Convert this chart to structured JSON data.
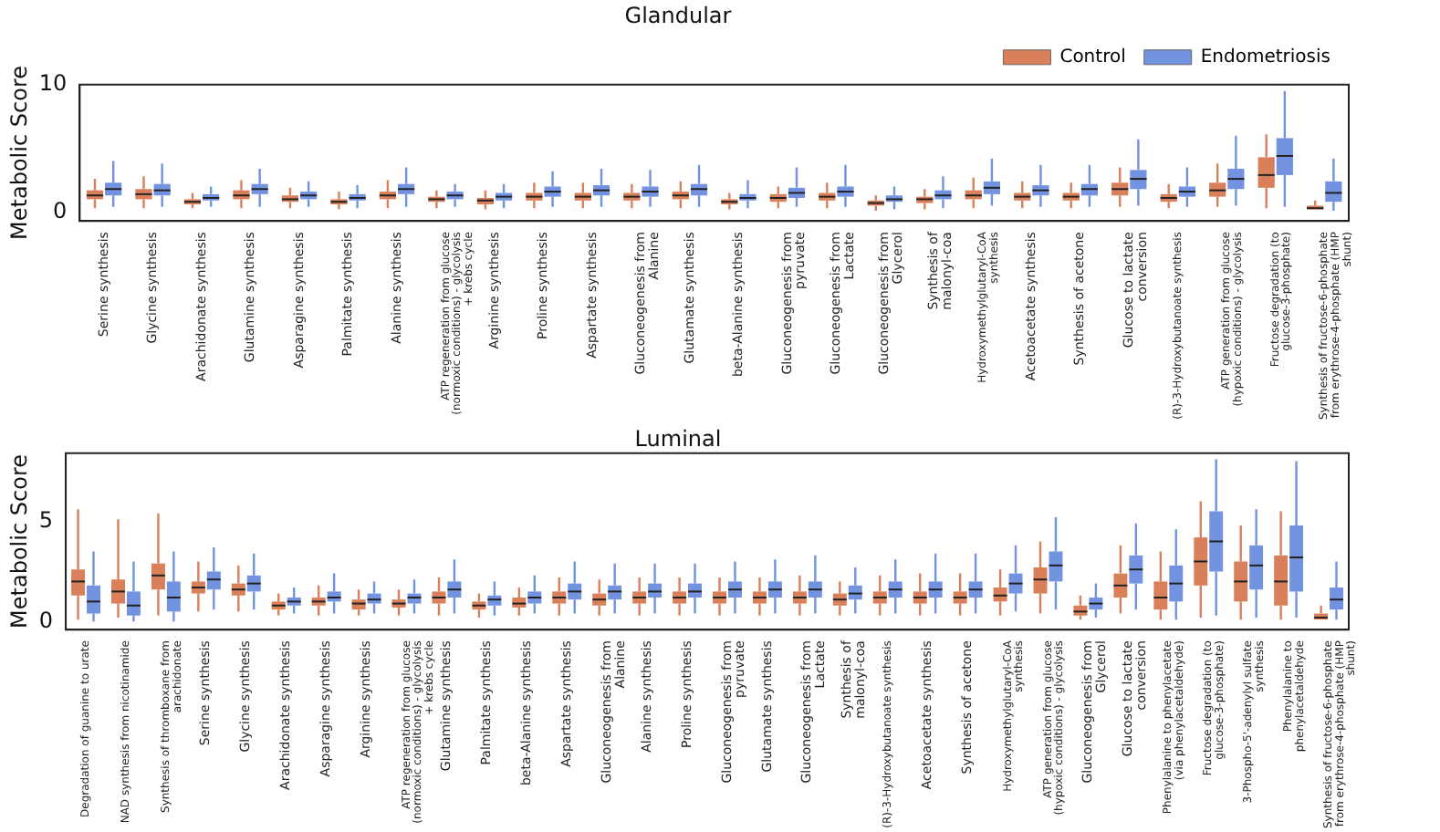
{
  "chart_data": [
    {
      "type": "box",
      "title": "Glandular",
      "ylabel": "Metabolic Score",
      "ylim": [
        -0.7,
        10
      ],
      "yticks": [
        0,
        10
      ],
      "grid": false,
      "legend": "top right",
      "categories": [
        "Serine synthesis",
        "Glycine synthesis",
        "Arachidonate synthesis",
        "Glutamine synthesis",
        "Asparagine synthesis",
        "Palmitate synthesis",
        "Alanine synthesis",
        "ATP regeneration from glucose (normoxic conditions) - glycolysis + krebs cycle",
        "Arginine synthesis",
        "Proline synthesis",
        "Aspartate synthesis",
        "Gluconeogenesis from Alanine",
        "Glutamate synthesis",
        "beta-Alanine synthesis",
        "Gluconeogenesis from pyruvate",
        "Gluconeogenesis from Lactate",
        "Gluconeogenesis from Glycerol",
        "Synthesis of malonyl-coa",
        "Hydroxymethylglutaryl-CoA synthesis",
        "Acetoacetate synthesis",
        "Synthesis of acetone",
        "Glucose to lactate conversion",
        "(R)-3-Hydroxybutanoate synthesis",
        "ATP generation from glucose (hypoxic conditions) - glycolysis",
        "Fructose degradation (to glucose-3-phosphate)",
        "Synthesis of fructose-6-phosphate from erythrose-4-phosphate (HMP shunt)"
      ],
      "series": [
        {
          "name": "Control",
          "color": "#d9805a",
          "boxes": [
            {
              "low": 0.3,
              "q1": 1.0,
              "median": 1.3,
              "q3": 1.7,
              "high": 2.6
            },
            {
              "low": 0.3,
              "q1": 1.0,
              "median": 1.4,
              "q3": 1.8,
              "high": 2.8
            },
            {
              "low": 0.3,
              "q1": 0.6,
              "median": 0.8,
              "q3": 1.0,
              "high": 1.5
            },
            {
              "low": 0.3,
              "q1": 1.0,
              "median": 1.3,
              "q3": 1.7,
              "high": 2.5
            },
            {
              "low": 0.3,
              "q1": 0.8,
              "median": 1.0,
              "q3": 1.3,
              "high": 1.9
            },
            {
              "low": 0.2,
              "q1": 0.6,
              "median": 0.8,
              "q3": 1.0,
              "high": 1.6
            },
            {
              "low": 0.3,
              "q1": 1.0,
              "median": 1.3,
              "q3": 1.6,
              "high": 2.5
            },
            {
              "low": 0.3,
              "q1": 0.8,
              "median": 1.0,
              "q3": 1.2,
              "high": 1.7
            },
            {
              "low": 0.2,
              "q1": 0.6,
              "median": 0.9,
              "q3": 1.1,
              "high": 1.7
            },
            {
              "low": 0.3,
              "q1": 0.9,
              "median": 1.2,
              "q3": 1.5,
              "high": 2.3
            },
            {
              "low": 0.3,
              "q1": 0.9,
              "median": 1.2,
              "q3": 1.5,
              "high": 2.3
            },
            {
              "low": 0.3,
              "q1": 0.9,
              "median": 1.2,
              "q3": 1.5,
              "high": 2.2
            },
            {
              "low": 0.3,
              "q1": 1.0,
              "median": 1.3,
              "q3": 1.6,
              "high": 2.4
            },
            {
              "low": 0.2,
              "q1": 0.6,
              "median": 0.8,
              "q3": 1.0,
              "high": 1.5
            },
            {
              "low": 0.3,
              "q1": 0.8,
              "median": 1.1,
              "q3": 1.4,
              "high": 2.0
            },
            {
              "low": 0.3,
              "q1": 0.9,
              "median": 1.2,
              "q3": 1.5,
              "high": 2.3
            },
            {
              "low": 0.1,
              "q1": 0.5,
              "median": 0.7,
              "q3": 0.9,
              "high": 1.3
            },
            {
              "low": 0.2,
              "q1": 0.7,
              "median": 1.0,
              "q3": 1.2,
              "high": 1.8
            },
            {
              "low": 0.3,
              "q1": 1.0,
              "median": 1.3,
              "q3": 1.7,
              "high": 2.7
            },
            {
              "low": 0.3,
              "q1": 0.9,
              "median": 1.2,
              "q3": 1.5,
              "high": 2.4
            },
            {
              "low": 0.3,
              "q1": 0.9,
              "median": 1.2,
              "q3": 1.5,
              "high": 2.3
            },
            {
              "low": 0.4,
              "q1": 1.3,
              "median": 1.8,
              "q3": 2.3,
              "high": 3.5
            },
            {
              "low": 0.3,
              "q1": 0.8,
              "median": 1.1,
              "q3": 1.4,
              "high": 2.2
            },
            {
              "low": 0.4,
              "q1": 1.2,
              "median": 1.7,
              "q3": 2.3,
              "high": 3.8
            },
            {
              "low": 0.3,
              "q1": 1.9,
              "median": 2.9,
              "q3": 4.3,
              "high": 6.1
            },
            {
              "low": 0.1,
              "q1": 0.2,
              "median": 0.3,
              "q3": 0.5,
              "high": 0.9
            }
          ]
        },
        {
          "name": "Endometriosis",
          "color": "#7393e0",
          "boxes": [
            {
              "low": 0.4,
              "q1": 1.3,
              "median": 1.8,
              "q3": 2.3,
              "high": 4.0
            },
            {
              "low": 0.4,
              "q1": 1.3,
              "median": 1.7,
              "q3": 2.2,
              "high": 3.8
            },
            {
              "low": 0.4,
              "q1": 0.9,
              "median": 1.1,
              "q3": 1.4,
              "high": 2.0
            },
            {
              "low": 0.4,
              "q1": 1.4,
              "median": 1.8,
              "q3": 2.2,
              "high": 3.4
            },
            {
              "low": 0.4,
              "q1": 1.0,
              "median": 1.3,
              "q3": 1.6,
              "high": 2.4
            },
            {
              "low": 0.3,
              "q1": 0.9,
              "median": 1.1,
              "q3": 1.4,
              "high": 2.1
            },
            {
              "low": 0.4,
              "q1": 1.4,
              "median": 1.8,
              "q3": 2.2,
              "high": 3.5
            },
            {
              "low": 0.4,
              "q1": 1.0,
              "median": 1.3,
              "q3": 1.6,
              "high": 2.2
            },
            {
              "low": 0.3,
              "q1": 0.9,
              "median": 1.2,
              "q3": 1.5,
              "high": 2.2
            },
            {
              "low": 0.4,
              "q1": 1.2,
              "median": 1.6,
              "q3": 2.0,
              "high": 3.2
            },
            {
              "low": 0.4,
              "q1": 1.3,
              "median": 1.7,
              "q3": 2.1,
              "high": 3.4
            },
            {
              "low": 0.4,
              "q1": 1.2,
              "median": 1.6,
              "q3": 2.0,
              "high": 3.3
            },
            {
              "low": 0.4,
              "q1": 1.3,
              "median": 1.8,
              "q3": 2.2,
              "high": 3.7
            },
            {
              "low": 0.3,
              "q1": 0.9,
              "median": 1.1,
              "q3": 1.4,
              "high": 2.5
            },
            {
              "low": 0.4,
              "q1": 1.1,
              "median": 1.5,
              "q3": 1.9,
              "high": 3.5
            },
            {
              "low": 0.4,
              "q1": 1.2,
              "median": 1.6,
              "q3": 2.0,
              "high": 3.7
            },
            {
              "low": 0.2,
              "q1": 0.8,
              "median": 1.0,
              "q3": 1.3,
              "high": 2.0
            },
            {
              "low": 0.3,
              "q1": 1.0,
              "median": 1.3,
              "q3": 1.7,
              "high": 2.8
            },
            {
              "low": 0.5,
              "q1": 1.4,
              "median": 1.9,
              "q3": 2.4,
              "high": 4.2
            },
            {
              "low": 0.4,
              "q1": 1.3,
              "median": 1.7,
              "q3": 2.1,
              "high": 3.7
            },
            {
              "low": 0.4,
              "q1": 1.3,
              "median": 1.8,
              "q3": 2.2,
              "high": 3.7
            },
            {
              "low": 0.5,
              "q1": 1.8,
              "median": 2.6,
              "q3": 3.3,
              "high": 5.7
            },
            {
              "low": 0.4,
              "q1": 1.2,
              "median": 1.6,
              "q3": 2.0,
              "high": 3.5
            },
            {
              "low": 0.5,
              "q1": 1.8,
              "median": 2.6,
              "q3": 3.4,
              "high": 6.0
            },
            {
              "low": 0.4,
              "q1": 2.9,
              "median": 4.4,
              "q3": 5.8,
              "high": 9.5
            },
            {
              "low": 0.1,
              "q1": 0.8,
              "median": 1.5,
              "q3": 2.4,
              "high": 4.2
            }
          ]
        }
      ]
    },
    {
      "type": "box",
      "title": "Luminal",
      "ylabel": "Metabolic Score",
      "ylim": [
        -0.4,
        8.4
      ],
      "yticks": [
        0,
        5
      ],
      "grid": false,
      "categories": [
        "Degradation of guanine to urate",
        "NAD synthesis from nicotinamide",
        "Synthesis of thromboxane from arachidonate",
        "Serine synthesis",
        "Glycine synthesis",
        "Arachidonate synthesis",
        "Asparagine synthesis",
        "Arginine synthesis",
        "ATP regeneration from glucose (normoxic conditions) - glycolysis + krebs cycle",
        "Glutamine synthesis",
        "Palmitate synthesis",
        "beta-Alanine synthesis",
        "Aspartate synthesis",
        "Gluconeogenesis from Alanine",
        "Alanine synthesis",
        "Proline synthesis",
        "Gluconeogenesis from pyruvate",
        "Glutamate synthesis",
        "Gluconeogenesis from Lactate",
        "Synthesis of malonyl-coa",
        "(R)-3-Hydroxybutanoate synthesis",
        "Acetoacetate synthesis",
        "Synthesis of acetone",
        "Hydroxymethylglutaryl-CoA synthesis",
        "ATP generation from glucose (hypoxic conditions) - glycolysis",
        "Gluconeogenesis from Glycerol",
        "Glucose to lactate conversion",
        "Phenylalanine to phenylacetate (via phenylacetaldehyde)",
        "Fructose degradation (to glucose-3-phosphate)",
        "3-Phospho-5'-adenylyl sulfate synthesis",
        "Phenylalanine to phenylacetaldehyde",
        "Synthesis of fructose-6-phosphate from erythrose-4-phosphate (HMP shunt)"
      ],
      "series": [
        {
          "color": "#d9805a",
          "boxes": [
            {
              "low": 0.1,
              "q1": 1.3,
              "median": 2.0,
              "q3": 2.6,
              "high": 5.6
            },
            {
              "low": 0.2,
              "q1": 0.9,
              "median": 1.5,
              "q3": 2.1,
              "high": 5.1
            },
            {
              "low": 0.3,
              "q1": 1.6,
              "median": 2.3,
              "q3": 2.9,
              "high": 5.4
            },
            {
              "low": 0.5,
              "q1": 1.4,
              "median": 1.7,
              "q3": 2.0,
              "high": 3.0
            },
            {
              "low": 0.5,
              "q1": 1.3,
              "median": 1.6,
              "q3": 1.9,
              "high": 2.8
            },
            {
              "low": 0.3,
              "q1": 0.6,
              "median": 0.8,
              "q3": 1.0,
              "high": 1.4
            },
            {
              "low": 0.3,
              "q1": 0.8,
              "median": 1.0,
              "q3": 1.2,
              "high": 1.8
            },
            {
              "low": 0.3,
              "q1": 0.6,
              "median": 0.9,
              "q3": 1.1,
              "high": 1.6
            },
            {
              "low": 0.3,
              "q1": 0.7,
              "median": 0.9,
              "q3": 1.1,
              "high": 1.6
            },
            {
              "low": 0.3,
              "q1": 0.9,
              "median": 1.2,
              "q3": 1.5,
              "high": 2.2
            },
            {
              "low": 0.2,
              "q1": 0.6,
              "median": 0.8,
              "q3": 1.0,
              "high": 1.4
            },
            {
              "low": 0.3,
              "q1": 0.7,
              "median": 0.9,
              "q3": 1.2,
              "high": 1.7
            },
            {
              "low": 0.3,
              "q1": 0.9,
              "median": 1.2,
              "q3": 1.5,
              "high": 2.2
            },
            {
              "low": 0.3,
              "q1": 0.8,
              "median": 1.1,
              "q3": 1.4,
              "high": 2.1
            },
            {
              "low": 0.3,
              "q1": 0.9,
              "median": 1.2,
              "q3": 1.5,
              "high": 2.2
            },
            {
              "low": 0.3,
              "q1": 0.9,
              "median": 1.2,
              "q3": 1.5,
              "high": 2.2
            },
            {
              "low": 0.3,
              "q1": 0.9,
              "median": 1.2,
              "q3": 1.5,
              "high": 2.2
            },
            {
              "low": 0.3,
              "q1": 0.9,
              "median": 1.2,
              "q3": 1.5,
              "high": 2.2
            },
            {
              "low": 0.3,
              "q1": 0.9,
              "median": 1.2,
              "q3": 1.5,
              "high": 2.3
            },
            {
              "low": 0.3,
              "q1": 0.8,
              "median": 1.1,
              "q3": 1.4,
              "high": 2.0
            },
            {
              "low": 0.3,
              "q1": 0.9,
              "median": 1.2,
              "q3": 1.5,
              "high": 2.3
            },
            {
              "low": 0.3,
              "q1": 0.9,
              "median": 1.2,
              "q3": 1.5,
              "high": 2.4
            },
            {
              "low": 0.3,
              "q1": 0.9,
              "median": 1.2,
              "q3": 1.5,
              "high": 2.4
            },
            {
              "low": 0.3,
              "q1": 1.0,
              "median": 1.3,
              "q3": 1.7,
              "high": 2.6
            },
            {
              "low": 0.4,
              "q1": 1.4,
              "median": 2.1,
              "q3": 2.7,
              "high": 4.0
            },
            {
              "low": 0.1,
              "q1": 0.3,
              "median": 0.5,
              "q3": 0.8,
              "high": 1.3
            },
            {
              "low": 0.4,
              "q1": 1.2,
              "median": 1.8,
              "q3": 2.4,
              "high": 3.8
            },
            {
              "low": 0.1,
              "q1": 0.6,
              "median": 1.2,
              "q3": 2.0,
              "high": 3.5
            },
            {
              "low": 0.2,
              "q1": 1.8,
              "median": 3.0,
              "q3": 4.2,
              "high": 6.0
            },
            {
              "low": 0.1,
              "q1": 1.0,
              "median": 2.0,
              "q3": 3.0,
              "high": 4.8
            },
            {
              "low": 0.1,
              "q1": 0.8,
              "median": 2.0,
              "q3": 3.3,
              "high": 5.5
            },
            {
              "low": 0.0,
              "q1": 0.1,
              "median": 0.2,
              "q3": 0.4,
              "high": 0.8
            }
          ]
        },
        {
          "color": "#7393e0",
          "boxes": [
            {
              "low": 0.0,
              "q1": 0.4,
              "median": 1.0,
              "q3": 1.8,
              "high": 3.5
            },
            {
              "low": 0.0,
              "q1": 0.3,
              "median": 0.8,
              "q3": 1.5,
              "high": 3.0
            },
            {
              "low": 0.0,
              "q1": 0.5,
              "median": 1.2,
              "q3": 2.0,
              "high": 3.5
            },
            {
              "low": 0.6,
              "q1": 1.6,
              "median": 2.1,
              "q3": 2.5,
              "high": 3.7
            },
            {
              "low": 0.6,
              "q1": 1.5,
              "median": 1.9,
              "q3": 2.3,
              "high": 3.4
            },
            {
              "low": 0.4,
              "q1": 0.8,
              "median": 1.0,
              "q3": 1.2,
              "high": 1.7
            },
            {
              "low": 0.4,
              "q1": 1.0,
              "median": 1.2,
              "q3": 1.5,
              "high": 2.4
            },
            {
              "low": 0.4,
              "q1": 0.9,
              "median": 1.1,
              "q3": 1.4,
              "high": 2.0
            },
            {
              "low": 0.4,
              "q1": 0.9,
              "median": 1.2,
              "q3": 1.4,
              "high": 2.1
            },
            {
              "low": 0.4,
              "q1": 1.2,
              "median": 1.6,
              "q3": 2.0,
              "high": 3.1
            },
            {
              "low": 0.3,
              "q1": 0.8,
              "median": 1.1,
              "q3": 1.3,
              "high": 2.0
            },
            {
              "low": 0.4,
              "q1": 0.9,
              "median": 1.2,
              "q3": 1.5,
              "high": 2.3
            },
            {
              "low": 0.4,
              "q1": 1.1,
              "median": 1.5,
              "q3": 1.9,
              "high": 3.0
            },
            {
              "low": 0.4,
              "q1": 1.1,
              "median": 1.5,
              "q3": 1.8,
              "high": 2.9
            },
            {
              "low": 0.4,
              "q1": 1.2,
              "median": 1.5,
              "q3": 1.9,
              "high": 2.9
            },
            {
              "low": 0.4,
              "q1": 1.2,
              "median": 1.5,
              "q3": 1.9,
              "high": 2.9
            },
            {
              "low": 0.4,
              "q1": 1.2,
              "median": 1.6,
              "q3": 2.0,
              "high": 3.0
            },
            {
              "low": 0.4,
              "q1": 1.2,
              "median": 1.6,
              "q3": 2.0,
              "high": 3.1
            },
            {
              "low": 0.4,
              "q1": 1.2,
              "median": 1.6,
              "q3": 2.0,
              "high": 3.3
            },
            {
              "low": 0.4,
              "q1": 1.1,
              "median": 1.4,
              "q3": 1.8,
              "high": 2.7
            },
            {
              "low": 0.4,
              "q1": 1.2,
              "median": 1.6,
              "q3": 2.0,
              "high": 3.1
            },
            {
              "low": 0.4,
              "q1": 1.2,
              "median": 1.6,
              "q3": 2.0,
              "high": 3.4
            },
            {
              "low": 0.4,
              "q1": 1.2,
              "median": 1.6,
              "q3": 2.0,
              "high": 3.4
            },
            {
              "low": 0.5,
              "q1": 1.4,
              "median": 1.9,
              "q3": 2.4,
              "high": 3.8
            },
            {
              "low": 0.6,
              "q1": 2.0,
              "median": 2.8,
              "q3": 3.5,
              "high": 5.2
            },
            {
              "low": 0.2,
              "q1": 0.6,
              "median": 0.9,
              "q3": 1.2,
              "high": 1.9
            },
            {
              "low": 0.6,
              "q1": 1.9,
              "median": 2.6,
              "q3": 3.3,
              "high": 4.9
            },
            {
              "low": 0.1,
              "q1": 1.0,
              "median": 1.9,
              "q3": 2.8,
              "high": 4.6
            },
            {
              "low": 0.3,
              "q1": 2.5,
              "median": 4.0,
              "q3": 5.5,
              "high": 8.1
            },
            {
              "low": 0.2,
              "q1": 1.6,
              "median": 2.8,
              "q3": 3.8,
              "high": 5.6
            },
            {
              "low": 0.2,
              "q1": 1.5,
              "median": 3.2,
              "q3": 4.8,
              "high": 8.0
            },
            {
              "low": 0.1,
              "q1": 0.6,
              "median": 1.1,
              "q3": 1.7,
              "high": 3.0
            }
          ]
        }
      ]
    }
  ]
}
